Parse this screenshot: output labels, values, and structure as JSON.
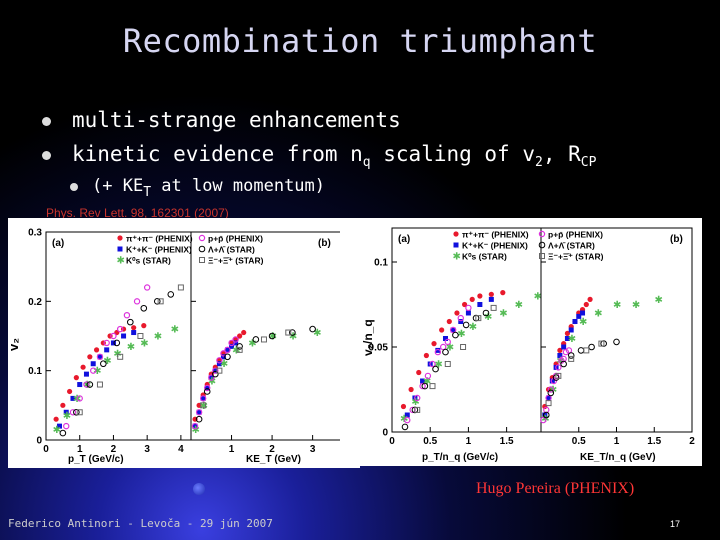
{
  "title": "Recombination triumphant",
  "bullets": {
    "b1": "multi-strange enhancements",
    "b2_pre": "kinetic evidence from n",
    "b2_sub1": "q",
    "b2_mid": " scaling of v",
    "b2_sub2": "2",
    "b2_mid2": ", R",
    "b2_sub3": "CP",
    "b3_pre": "(+ KE",
    "b3_sub": "T",
    "b3_post": " at low momentum)"
  },
  "reference": "Phys. Rev Lett. 98, 162301 (2007)",
  "colors": {
    "pi": "#e8192c",
    "k": "#1010dd",
    "p": "#dd33dd",
    "k0s": "#55bb55",
    "l": "#000000",
    "xi": "#666666"
  },
  "legend": {
    "pi": "π⁺+π⁻ (PHENIX)",
    "k": "K⁺+K⁻ (PHENIX)",
    "k0s": "K⁰s (STAR)",
    "p": "p+p̄ (PHENIX)",
    "l": "Λ+Λ̄ (STAR)",
    "xi": "Ξ⁻+Ξ̄⁺ (STAR)"
  },
  "panel_labels": {
    "a": "(a)",
    "b": "(b)"
  },
  "left_figure": {
    "ylabel": "v₂",
    "xlabel_a": "p_T (GeV/c)",
    "xlabel_b": "KE_T (GeV)",
    "yticks": [
      "0",
      "0.1",
      "0.2",
      "0.3"
    ],
    "xticks_a": [
      "0",
      "1",
      "2",
      "3",
      "4"
    ],
    "xticks_b": [
      "1",
      "2",
      "3"
    ]
  },
  "right_figure": {
    "ylabel": "v₂/n_q",
    "xlabel_a": "p_T/n_q (GeV/c)",
    "xlabel_b": "KE_T/n_q (GeV)",
    "yticks": [
      "0",
      "0.05",
      "0.1"
    ],
    "xticks_a": [
      "0",
      "0.5",
      "1",
      "1.5"
    ],
    "xticks_b": [
      "0.5",
      "1",
      "1.5",
      "2"
    ]
  },
  "credit": "Hugo Pereira (PHENIX)",
  "footer": "Federico Antinori - Levoča - 29 jún 2007",
  "page_number": "17",
  "chart_data": [
    {
      "type": "scatter",
      "panel": "left (a)",
      "xlabel": "p_T (GeV/c)",
      "ylabel": "v₂",
      "xlim": [
        0,
        4.3
      ],
      "ylim": [
        0,
        0.3
      ],
      "series": [
        {
          "name": "π⁺+π⁻ (PHENIX)",
          "color": "#e8192c",
          "x": [
            0.3,
            0.5,
            0.7,
            0.9,
            1.1,
            1.3,
            1.5,
            1.7,
            1.9,
            2.1,
            2.3,
            2.6,
            2.9
          ],
          "y": [
            0.03,
            0.05,
            0.07,
            0.09,
            0.105,
            0.12,
            0.13,
            0.14,
            0.15,
            0.155,
            0.16,
            0.162,
            0.165
          ]
        },
        {
          "name": "K⁺+K⁻ (PHENIX)",
          "color": "#1010dd",
          "x": [
            0.4,
            0.6,
            0.8,
            1.0,
            1.2,
            1.4,
            1.6,
            1.8,
            2.0,
            2.3,
            2.6
          ],
          "y": [
            0.02,
            0.04,
            0.06,
            0.08,
            0.095,
            0.11,
            0.12,
            0.13,
            0.14,
            0.15,
            0.155
          ]
        },
        {
          "name": "K⁰s (STAR)",
          "color": "#55bb55",
          "x": [
            0.3,
            0.6,
            0.9,
            1.2,
            1.5,
            1.8,
            2.1,
            2.5,
            2.9,
            3.3,
            3.8
          ],
          "y": [
            0.015,
            0.035,
            0.06,
            0.08,
            0.1,
            0.115,
            0.125,
            0.135,
            0.14,
            0.15,
            0.16
          ]
        },
        {
          "name": "p+p̄ (PHENIX)",
          "color": "#dd33dd",
          "x": [
            0.6,
            0.8,
            1.0,
            1.2,
            1.4,
            1.6,
            1.8,
            2.0,
            2.2,
            2.4,
            2.7,
            3.0
          ],
          "y": [
            0.02,
            0.04,
            0.06,
            0.08,
            0.1,
            0.12,
            0.14,
            0.15,
            0.16,
            0.18,
            0.2,
            0.22
          ]
        },
        {
          "name": "Λ+Λ̄ (STAR)",
          "color": "#000000",
          "x": [
            0.5,
            0.9,
            1.3,
            1.7,
            2.1,
            2.5,
            2.9,
            3.3,
            3.7
          ],
          "y": [
            0.01,
            0.04,
            0.08,
            0.11,
            0.14,
            0.17,
            0.19,
            0.2,
            0.21
          ]
        },
        {
          "name": "Ξ⁻+Ξ̄⁺ (STAR)",
          "color": "#666666",
          "x": [
            1.0,
            1.6,
            2.2,
            2.8,
            3.4,
            4.0
          ],
          "y": [
            0.04,
            0.08,
            0.12,
            0.15,
            0.2,
            0.22
          ]
        }
      ]
    },
    {
      "type": "scatter",
      "panel": "left (b)",
      "xlabel": "KE_T (GeV)",
      "ylabel": "v₂",
      "xlim": [
        0,
        3.7
      ],
      "ylim": [
        0,
        0.3
      ],
      "series": [
        {
          "name": "π⁺+π⁻ (PHENIX)",
          "color": "#e8192c",
          "x": [
            0.1,
            0.2,
            0.3,
            0.4,
            0.5,
            0.6,
            0.7,
            0.8,
            0.9,
            1.0,
            1.1,
            1.2,
            1.3
          ],
          "y": [
            0.03,
            0.05,
            0.065,
            0.08,
            0.095,
            0.105,
            0.115,
            0.125,
            0.13,
            0.14,
            0.145,
            0.15,
            0.155
          ]
        },
        {
          "name": "K⁺+K⁻ (PHENIX)",
          "color": "#1010dd",
          "x": [
            0.1,
            0.2,
            0.3,
            0.4,
            0.5,
            0.6,
            0.7,
            0.8,
            0.9,
            1.0,
            1.1
          ],
          "y": [
            0.02,
            0.04,
            0.06,
            0.075,
            0.09,
            0.1,
            0.11,
            0.12,
            0.13,
            0.135,
            0.14
          ]
        },
        {
          "name": "K⁰s (STAR)",
          "color": "#55bb55",
          "x": [
            0.1,
            0.3,
            0.5,
            0.8,
            1.1,
            1.5,
            2.0,
            2.5,
            3.1
          ],
          "y": [
            0.015,
            0.05,
            0.085,
            0.11,
            0.13,
            0.14,
            0.15,
            0.15,
            0.155
          ]
        },
        {
          "name": "p+p̄ (PHENIX)",
          "color": "#dd33dd",
          "x": [
            0.1,
            0.2,
            0.3,
            0.4,
            0.5,
            0.6,
            0.7,
            0.8,
            0.9,
            1.0,
            1.1
          ],
          "y": [
            0.02,
            0.04,
            0.06,
            0.075,
            0.09,
            0.1,
            0.115,
            0.125,
            0.13,
            0.14,
            0.145
          ]
        },
        {
          "name": "Λ+Λ̄ (STAR)",
          "color": "#000000",
          "x": [
            0.2,
            0.4,
            0.6,
            0.9,
            1.2,
            1.6,
            2.0,
            2.5,
            3.0
          ],
          "y": [
            0.03,
            0.07,
            0.095,
            0.12,
            0.135,
            0.145,
            0.15,
            0.155,
            0.16
          ]
        },
        {
          "name": "Ξ⁻+Ξ̄⁺ (STAR)",
          "color": "#666666",
          "x": [
            0.3,
            0.7,
            1.2,
            1.8,
            2.4
          ],
          "y": [
            0.05,
            0.1,
            0.13,
            0.145,
            0.155
          ]
        }
      ]
    },
    {
      "type": "scatter",
      "panel": "right (a)",
      "xlabel": "p_T/n_q (GeV/c)",
      "ylabel": "v₂/n_q",
      "xlim": [
        0,
        1.95
      ],
      "ylim": [
        0,
        0.12
      ],
      "series": [
        {
          "name": "π⁺+π⁻ (PHENIX)",
          "color": "#e8192c",
          "x": [
            0.15,
            0.25,
            0.35,
            0.45,
            0.55,
            0.65,
            0.75,
            0.85,
            0.95,
            1.05,
            1.15,
            1.3,
            1.45
          ],
          "y": [
            0.015,
            0.025,
            0.035,
            0.045,
            0.052,
            0.06,
            0.065,
            0.07,
            0.075,
            0.078,
            0.08,
            0.081,
            0.082
          ]
        },
        {
          "name": "K⁺+K⁻ (PHENIX)",
          "color": "#1010dd",
          "x": [
            0.2,
            0.3,
            0.4,
            0.5,
            0.6,
            0.7,
            0.8,
            0.9,
            1.0,
            1.15,
            1.3
          ],
          "y": [
            0.01,
            0.02,
            0.03,
            0.04,
            0.048,
            0.055,
            0.06,
            0.065,
            0.07,
            0.075,
            0.078
          ]
        },
        {
          "name": "K⁰s (STAR)",
          "color": "#55bb55",
          "x": [
            0.15,
            0.3,
            0.45,
            0.6,
            0.75,
            0.9,
            1.05,
            1.25,
            1.45,
            1.65,
            1.9
          ],
          "y": [
            0.008,
            0.018,
            0.03,
            0.04,
            0.05,
            0.058,
            0.062,
            0.068,
            0.07,
            0.075,
            0.08
          ]
        },
        {
          "name": "p+p̄ (PHENIX)",
          "color": "#dd33dd",
          "x": [
            0.2,
            0.27,
            0.33,
            0.4,
            0.47,
            0.53,
            0.6,
            0.67,
            0.73,
            0.8,
            0.9,
            1.0
          ],
          "y": [
            0.007,
            0.013,
            0.02,
            0.027,
            0.033,
            0.04,
            0.047,
            0.05,
            0.053,
            0.06,
            0.067,
            0.073
          ]
        },
        {
          "name": "Λ+Λ̄ (STAR)",
          "color": "#000000",
          "x": [
            0.17,
            0.3,
            0.43,
            0.57,
            0.7,
            0.83,
            0.97,
            1.1,
            1.23
          ],
          "y": [
            0.003,
            0.013,
            0.027,
            0.037,
            0.047,
            0.057,
            0.063,
            0.067,
            0.07
          ]
        },
        {
          "name": "Ξ⁻+Ξ̄⁺ (STAR)",
          "color": "#666666",
          "x": [
            0.33,
            0.53,
            0.73,
            0.93,
            1.13,
            1.33
          ],
          "y": [
            0.013,
            0.027,
            0.04,
            0.05,
            0.067,
            0.073
          ]
        }
      ]
    },
    {
      "type": "scatter",
      "panel": "right (b)",
      "xlabel": "KE_T/n_q (GeV)",
      "ylabel": "v₂/n_q",
      "xlim": [
        0,
        2.0
      ],
      "ylim": [
        0,
        0.12
      ],
      "series": [
        {
          "name": "π⁺+π⁻ (PHENIX)",
          "color": "#e8192c",
          "x": [
            0.05,
            0.1,
            0.15,
            0.2,
            0.25,
            0.3,
            0.35,
            0.4,
            0.45,
            0.5,
            0.55,
            0.6,
            0.65
          ],
          "y": [
            0.015,
            0.025,
            0.032,
            0.04,
            0.048,
            0.052,
            0.058,
            0.062,
            0.065,
            0.07,
            0.072,
            0.075,
            0.078
          ]
        },
        {
          "name": "K⁺+K⁻ (PHENIX)",
          "color": "#1010dd",
          "x": [
            0.05,
            0.1,
            0.15,
            0.2,
            0.25,
            0.3,
            0.35,
            0.4,
            0.45,
            0.5,
            0.55
          ],
          "y": [
            0.01,
            0.02,
            0.03,
            0.038,
            0.045,
            0.05,
            0.055,
            0.06,
            0.065,
            0.068,
            0.07
          ]
        },
        {
          "name": "K⁰s (STAR)",
          "color": "#55bb55",
          "x": [
            0.05,
            0.15,
            0.25,
            0.4,
            0.55,
            0.75,
            1.0,
            1.25,
            1.55
          ],
          "y": [
            0.008,
            0.025,
            0.042,
            0.055,
            0.065,
            0.07,
            0.075,
            0.075,
            0.078
          ]
        },
        {
          "name": "p+p̄ (PHENIX)",
          "color": "#dd33dd",
          "x": [
            0.03,
            0.07,
            0.1,
            0.13,
            0.17,
            0.2,
            0.23,
            0.27,
            0.3,
            0.33,
            0.37
          ],
          "y": [
            0.007,
            0.013,
            0.02,
            0.025,
            0.03,
            0.033,
            0.038,
            0.042,
            0.043,
            0.047,
            0.048
          ]
        },
        {
          "name": "Λ+Λ̄ (STAR)",
          "color": "#000000",
          "x": [
            0.07,
            0.13,
            0.2,
            0.3,
            0.4,
            0.53,
            0.67,
            0.83,
            1.0
          ],
          "y": [
            0.01,
            0.023,
            0.032,
            0.04,
            0.045,
            0.048,
            0.05,
            0.052,
            0.053
          ]
        },
        {
          "name": "Ξ⁻+Ξ̄⁺ (STAR)",
          "color": "#666666",
          "x": [
            0.1,
            0.23,
            0.4,
            0.6,
            0.8
          ],
          "y": [
            0.017,
            0.033,
            0.043,
            0.048,
            0.052
          ]
        }
      ]
    }
  ]
}
